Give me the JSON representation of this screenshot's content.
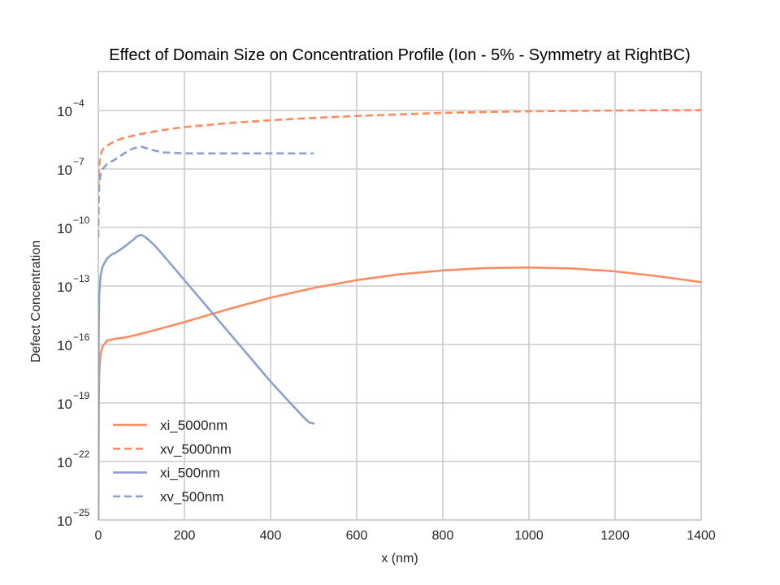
{
  "chart_data": {
    "type": "line",
    "title": "Effect of Domain Size on Concentration Profile (Ion - 5% - Symmetry at RightBC)",
    "xlabel": "x (nm)",
    "ylabel": "Defect Concentration",
    "xlim": [
      0,
      1400
    ],
    "ylim_log10": [
      -25,
      -2
    ],
    "yscale": "log",
    "grid": true,
    "legend_position": "lower-left",
    "x_ticks": [
      0,
      200,
      400,
      600,
      800,
      1000,
      1200,
      1400
    ],
    "y_ticks_exponents": [
      -25,
      -22,
      -19,
      -16,
      -13,
      -10,
      -7,
      -4
    ],
    "series": [
      {
        "name": "xi_5000nm",
        "color": "#fc8d62",
        "style": "solid",
        "x": [
          0,
          1,
          2,
          5,
          10,
          20,
          40,
          60,
          80,
          100,
          150,
          200,
          300,
          400,
          500,
          600,
          700,
          800,
          900,
          1000,
          1100,
          1200,
          1300,
          1400
        ],
        "log10_y": [
          -25,
          -19,
          -17.5,
          -16.5,
          -16.1,
          -15.8,
          -15.7,
          -15.65,
          -15.55,
          -15.45,
          -15.15,
          -14.85,
          -14.2,
          -13.6,
          -13.1,
          -12.7,
          -12.4,
          -12.2,
          -12.08,
          -12.05,
          -12.1,
          -12.25,
          -12.5,
          -12.8
        ]
      },
      {
        "name": "xv_5000nm",
        "color": "#fc8d62",
        "style": "dashed",
        "x": [
          0,
          1,
          2,
          5,
          10,
          20,
          40,
          60,
          80,
          100,
          150,
          200,
          300,
          400,
          500,
          600,
          700,
          800,
          900,
          1000,
          1100,
          1200,
          1300,
          1400
        ],
        "log10_y": [
          -8,
          -7.2,
          -6.8,
          -6.3,
          -6.0,
          -5.8,
          -5.55,
          -5.4,
          -5.3,
          -5.2,
          -5.0,
          -4.85,
          -4.65,
          -4.5,
          -4.38,
          -4.28,
          -4.2,
          -4.12,
          -4.08,
          -4.04,
          -4.02,
          -4.0,
          -3.99,
          -3.98
        ]
      },
      {
        "name": "xi_500nm",
        "color": "#8da0cb",
        "style": "solid",
        "x": [
          0,
          1,
          2,
          5,
          10,
          20,
          30,
          40,
          60,
          80,
          90,
          100,
          110,
          130,
          150,
          200,
          250,
          300,
          350,
          400,
          450,
          480,
          490,
          500
        ],
        "log10_y": [
          -25,
          -15,
          -13.5,
          -12.5,
          -12.0,
          -11.6,
          -11.4,
          -11.3,
          -11.0,
          -10.65,
          -10.45,
          -10.38,
          -10.5,
          -10.9,
          -11.4,
          -12.7,
          -14.0,
          -15.3,
          -16.6,
          -17.9,
          -19.1,
          -19.8,
          -20.0,
          -20.05
        ]
      },
      {
        "name": "xv_500nm",
        "color": "#8da0cb",
        "style": "dashed",
        "x": [
          0,
          1,
          2,
          5,
          10,
          20,
          40,
          60,
          80,
          100,
          120,
          150,
          200,
          250,
          300,
          350,
          400,
          450,
          500
        ],
        "log10_y": [
          -10.5,
          -8.5,
          -7.8,
          -7.3,
          -7.0,
          -6.75,
          -6.5,
          -6.2,
          -5.95,
          -5.85,
          -6.0,
          -6.15,
          -6.2,
          -6.2,
          -6.2,
          -6.2,
          -6.2,
          -6.2,
          -6.2
        ]
      }
    ]
  }
}
